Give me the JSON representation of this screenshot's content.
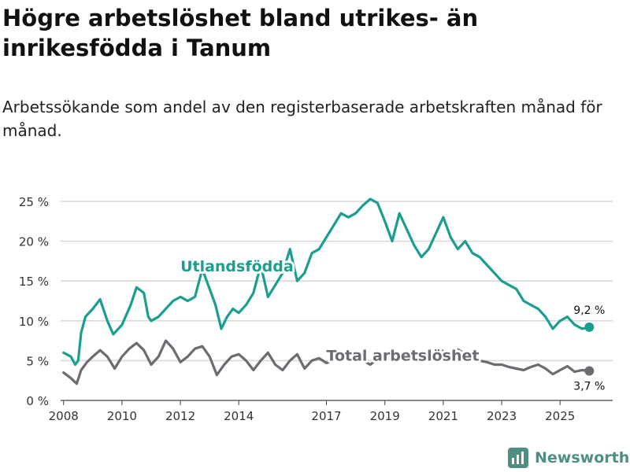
{
  "title": "Högre arbetslöshet bland utrikes- än inrikesfödda i Tanum",
  "subtitle": "Arbetssökande som andel av den registerbaserade arbetskraften månad för månad.",
  "brand": "Newsworthy",
  "colors": {
    "foreign": "#1a9e8f",
    "total": "#6d6b72",
    "grid": "#d9d9d9",
    "brand": "#4f8f83"
  },
  "chart_data": {
    "type": "line",
    "title": "Högre arbetslöshet bland utrikes- än inrikesfödda i Tanum",
    "xlabel": "",
    "ylabel": "",
    "ylim": [
      0,
      25
    ],
    "xlim": [
      2007.9,
      2026.8
    ],
    "y_ticks": [
      {
        "value": 0,
        "label": "0 %"
      },
      {
        "value": 5,
        "label": "5 %"
      },
      {
        "value": 10,
        "label": "10 %"
      },
      {
        "value": 15,
        "label": "15 %"
      },
      {
        "value": 20,
        "label": "20 %"
      },
      {
        "value": 25,
        "label": "25 %"
      }
    ],
    "x_ticks": [
      {
        "value": 2008.0,
        "label": "2008"
      },
      {
        "value": 2010.0,
        "label": "2010"
      },
      {
        "value": 2012.0,
        "label": "2012"
      },
      {
        "value": 2014.0,
        "label": "2014"
      },
      {
        "value": 2017.0,
        "label": "2017"
      },
      {
        "value": 2019.0,
        "label": "2019"
      },
      {
        "value": 2021.0,
        "label": "2021"
      },
      {
        "value": 2023.0,
        "label": "2023"
      },
      {
        "value": 2025.0,
        "label": "2025"
      }
    ],
    "series": [
      {
        "name": "Utlandsfödda",
        "color": "#1a9e8f",
        "end_label": "9,2 %",
        "points": [
          [
            2008.0,
            6.0
          ],
          [
            2008.25,
            5.5
          ],
          [
            2008.4,
            4.5
          ],
          [
            2008.5,
            5.0
          ],
          [
            2008.6,
            8.5
          ],
          [
            2008.75,
            10.5
          ],
          [
            2009.0,
            11.5
          ],
          [
            2009.25,
            12.7
          ],
          [
            2009.5,
            10.0
          ],
          [
            2009.7,
            8.3
          ],
          [
            2010.0,
            9.5
          ],
          [
            2010.3,
            12.0
          ],
          [
            2010.5,
            14.2
          ],
          [
            2010.75,
            13.5
          ],
          [
            2010.9,
            10.5
          ],
          [
            2011.0,
            10.0
          ],
          [
            2011.25,
            10.5
          ],
          [
            2011.5,
            11.5
          ],
          [
            2011.75,
            12.5
          ],
          [
            2012.0,
            13.0
          ],
          [
            2012.25,
            12.5
          ],
          [
            2012.5,
            13.0
          ],
          [
            2012.75,
            16.5
          ],
          [
            2013.0,
            14.0
          ],
          [
            2013.2,
            12.0
          ],
          [
            2013.4,
            9.0
          ],
          [
            2013.6,
            10.5
          ],
          [
            2013.8,
            11.5
          ],
          [
            2014.0,
            11.0
          ],
          [
            2014.25,
            12.0
          ],
          [
            2014.5,
            13.5
          ],
          [
            2014.75,
            17.0
          ],
          [
            2015.0,
            13.0
          ],
          [
            2015.25,
            14.5
          ],
          [
            2015.5,
            16.0
          ],
          [
            2015.75,
            19.0
          ],
          [
            2016.0,
            15.0
          ],
          [
            2016.25,
            16.0
          ],
          [
            2016.5,
            18.5
          ],
          [
            2016.75,
            19.0
          ],
          [
            2017.0,
            20.5
          ],
          [
            2017.25,
            22.0
          ],
          [
            2017.5,
            23.5
          ],
          [
            2017.75,
            23.0
          ],
          [
            2018.0,
            23.5
          ],
          [
            2018.25,
            24.5
          ],
          [
            2018.5,
            25.3
          ],
          [
            2018.75,
            24.8
          ],
          [
            2019.0,
            22.5
          ],
          [
            2019.25,
            20.0
          ],
          [
            2019.5,
            23.5
          ],
          [
            2019.75,
            21.5
          ],
          [
            2020.0,
            19.5
          ],
          [
            2020.25,
            18.0
          ],
          [
            2020.5,
            19.0
          ],
          [
            2020.75,
            21.0
          ],
          [
            2021.0,
            23.0
          ],
          [
            2021.25,
            20.5
          ],
          [
            2021.5,
            19.0
          ],
          [
            2021.75,
            20.0
          ],
          [
            2022.0,
            18.5
          ],
          [
            2022.25,
            18.0
          ],
          [
            2022.5,
            17.0
          ],
          [
            2022.75,
            16.0
          ],
          [
            2023.0,
            15.0
          ],
          [
            2023.25,
            14.5
          ],
          [
            2023.5,
            14.0
          ],
          [
            2023.75,
            12.5
          ],
          [
            2024.0,
            12.0
          ],
          [
            2024.25,
            11.5
          ],
          [
            2024.5,
            10.5
          ],
          [
            2024.75,
            9.0
          ],
          [
            2025.0,
            10.0
          ],
          [
            2025.25,
            10.5
          ],
          [
            2025.5,
            9.5
          ],
          [
            2025.75,
            9.0
          ],
          [
            2026.0,
            9.2
          ]
        ]
      },
      {
        "name": "Total arbetslöshet",
        "color": "#6d6b72",
        "end_label": "3,7 %",
        "points": [
          [
            2008.0,
            3.5
          ],
          [
            2008.25,
            2.8
          ],
          [
            2008.45,
            2.1
          ],
          [
            2008.6,
            3.8
          ],
          [
            2008.8,
            4.8
          ],
          [
            2009.0,
            5.5
          ],
          [
            2009.25,
            6.3
          ],
          [
            2009.5,
            5.5
          ],
          [
            2009.75,
            4.0
          ],
          [
            2010.0,
            5.5
          ],
          [
            2010.25,
            6.5
          ],
          [
            2010.5,
            7.2
          ],
          [
            2010.75,
            6.3
          ],
          [
            2011.0,
            4.5
          ],
          [
            2011.25,
            5.5
          ],
          [
            2011.5,
            7.5
          ],
          [
            2011.75,
            6.5
          ],
          [
            2012.0,
            4.8
          ],
          [
            2012.25,
            5.5
          ],
          [
            2012.5,
            6.5
          ],
          [
            2012.75,
            6.8
          ],
          [
            2013.0,
            5.5
          ],
          [
            2013.25,
            3.2
          ],
          [
            2013.5,
            4.5
          ],
          [
            2013.75,
            5.5
          ],
          [
            2014.0,
            5.8
          ],
          [
            2014.25,
            5.0
          ],
          [
            2014.5,
            3.8
          ],
          [
            2014.75,
            5.0
          ],
          [
            2015.0,
            6.0
          ],
          [
            2015.25,
            4.5
          ],
          [
            2015.5,
            3.8
          ],
          [
            2015.75,
            5.0
          ],
          [
            2016.0,
            5.8
          ],
          [
            2016.25,
            4.0
          ],
          [
            2016.5,
            5.0
          ],
          [
            2016.75,
            5.3
          ],
          [
            2017.0,
            4.7
          ],
          [
            2017.25,
            5.0
          ],
          [
            2017.5,
            5.5
          ],
          [
            2017.75,
            5.8
          ],
          [
            2018.0,
            5.5
          ],
          [
            2018.25,
            5.0
          ],
          [
            2018.5,
            4.5
          ],
          [
            2018.75,
            5.2
          ],
          [
            2019.0,
            5.5
          ],
          [
            2019.25,
            5.0
          ],
          [
            2019.5,
            5.5
          ],
          [
            2019.75,
            5.8
          ],
          [
            2020.0,
            5.2
          ],
          [
            2020.25,
            5.6
          ],
          [
            2020.5,
            5.8
          ],
          [
            2020.75,
            6.4
          ],
          [
            2021.0,
            6.2
          ],
          [
            2021.25,
            5.6
          ],
          [
            2021.5,
            6.4
          ],
          [
            2021.75,
            5.8
          ],
          [
            2022.0,
            5.3
          ],
          [
            2022.25,
            5.0
          ],
          [
            2022.5,
            4.8
          ],
          [
            2022.75,
            4.5
          ],
          [
            2023.0,
            4.5
          ],
          [
            2023.25,
            4.2
          ],
          [
            2023.5,
            4.0
          ],
          [
            2023.75,
            3.8
          ],
          [
            2024.0,
            4.2
          ],
          [
            2024.25,
            4.5
          ],
          [
            2024.5,
            4.0
          ],
          [
            2024.75,
            3.3
          ],
          [
            2025.0,
            3.8
          ],
          [
            2025.25,
            4.3
          ],
          [
            2025.5,
            3.6
          ],
          [
            2025.75,
            3.8
          ],
          [
            2026.0,
            3.7
          ]
        ]
      }
    ],
    "annotations": [
      {
        "text": "Utlandsfödda",
        "series": "Utlandsfödda",
        "x": 2012.0,
        "y": 16.2
      },
      {
        "text": "Total arbetslöshet",
        "series": "Total arbetslöshet",
        "x": 2017.0,
        "y": 5.0
      }
    ]
  }
}
